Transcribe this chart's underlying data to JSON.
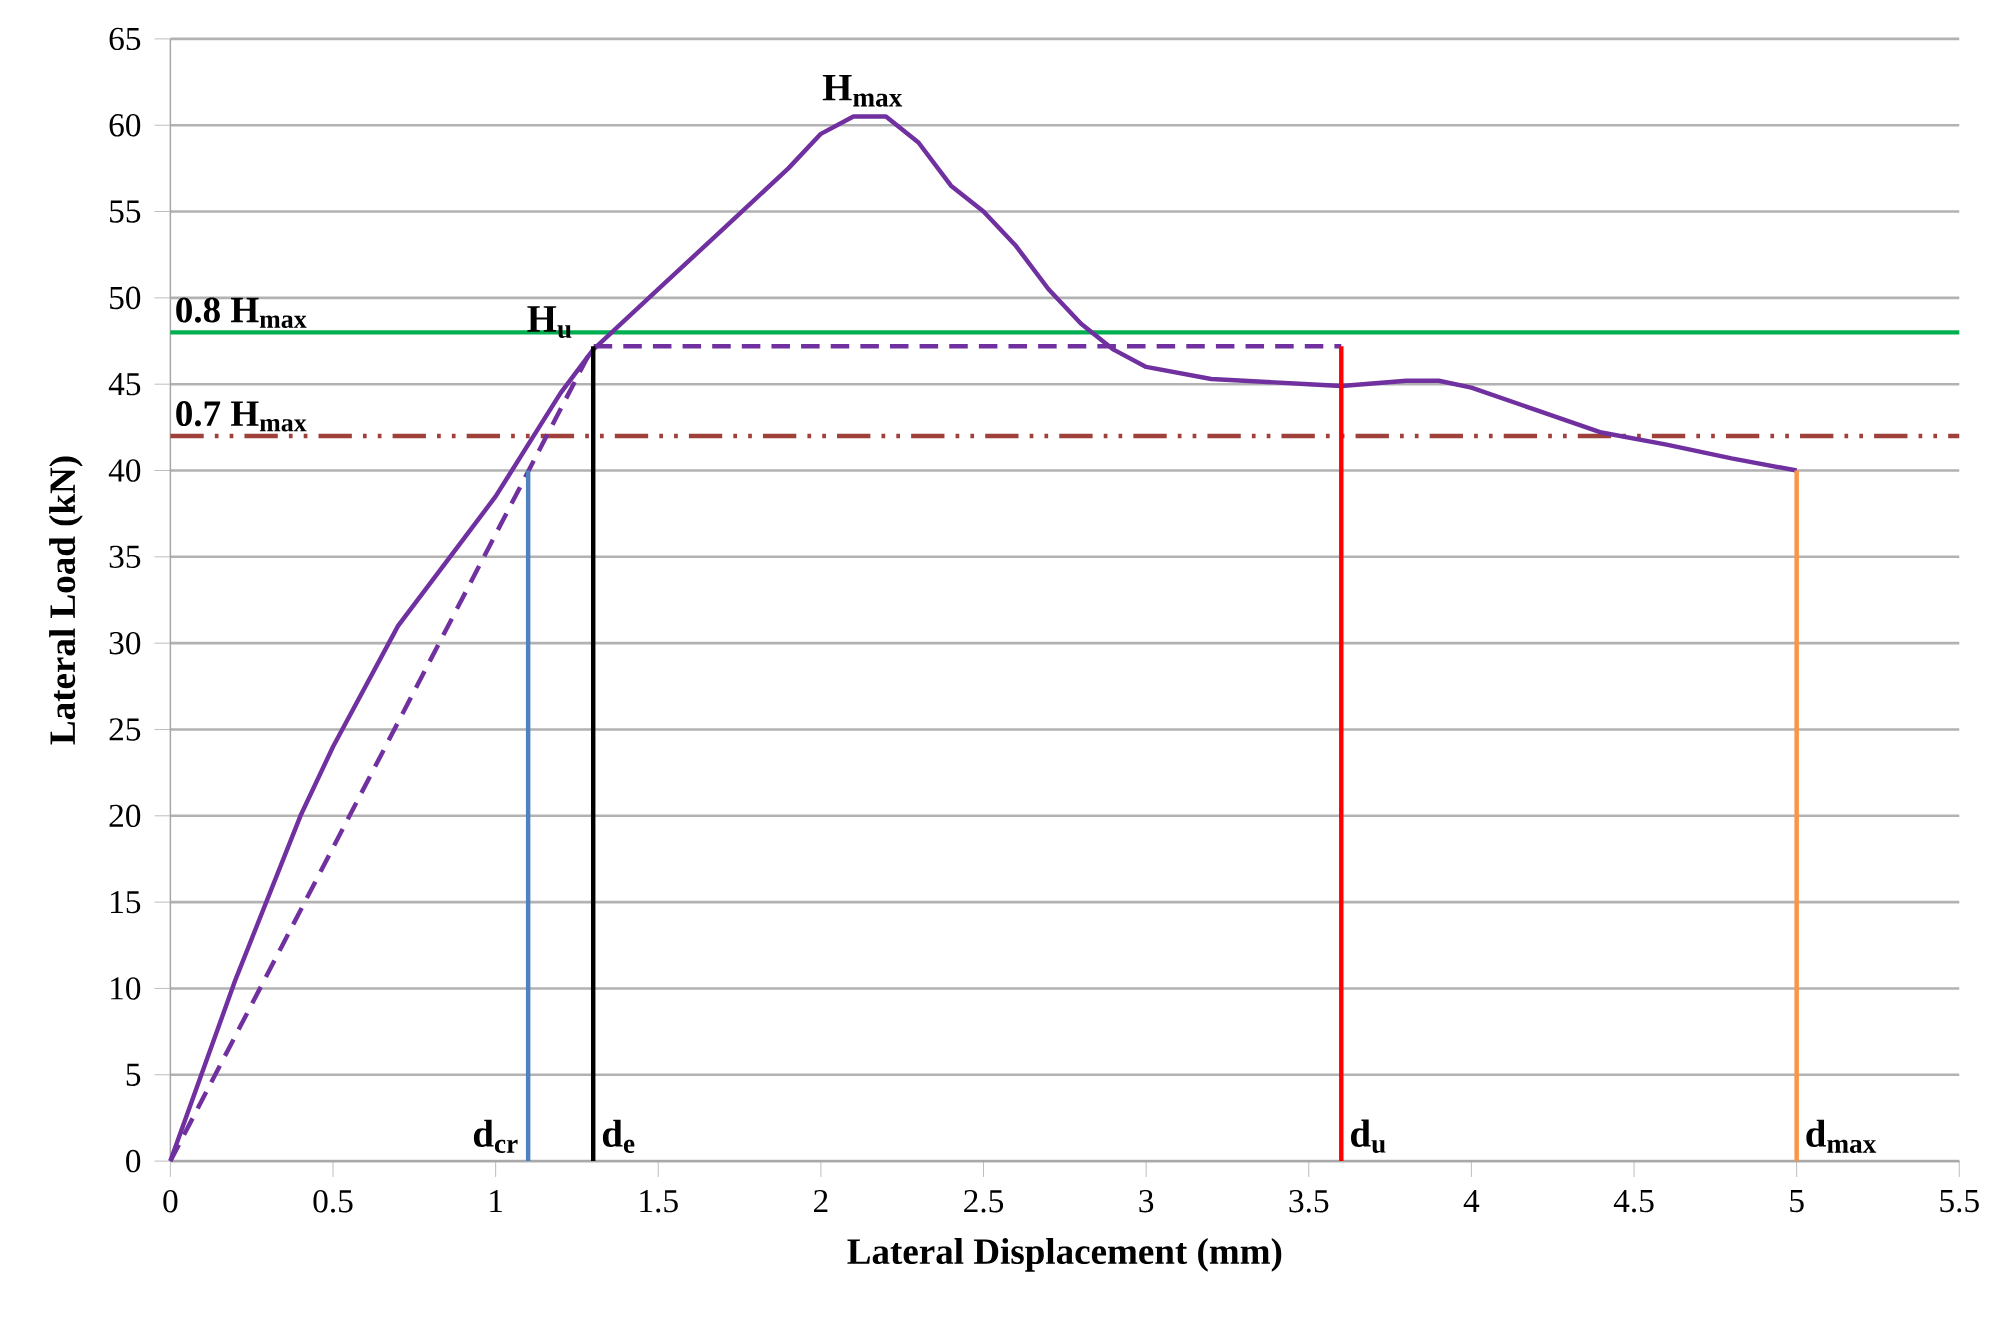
{
  "chart_data": {
    "type": "line",
    "xlabel": "Lateral Displacement (mm)",
    "ylabel": "Lateral Load (kN)",
    "xlim": [
      0,
      5.5
    ],
    "ylim": [
      0,
      65
    ],
    "xticks": [
      0,
      0.5,
      1,
      1.5,
      2,
      2.5,
      3,
      3.5,
      4,
      4.5,
      5,
      5.5
    ],
    "yticks": [
      0,
      5,
      10,
      15,
      20,
      25,
      30,
      35,
      40,
      45,
      50,
      55,
      60,
      65
    ],
    "grid": "y",
    "series": [
      {
        "color": "#7030a0",
        "line_style": "solid",
        "x": [
          0,
          0.2,
          0.4,
          0.5,
          0.7,
          0.9,
          1.0,
          1.1,
          1.2,
          1.3,
          1.5,
          1.7,
          1.9,
          2.0,
          2.1,
          2.2,
          2.3,
          2.4,
          2.5,
          2.6,
          2.7,
          2.8,
          2.9,
          3.0,
          3.2,
          3.5,
          3.6,
          3.8,
          3.9,
          4.0,
          4.2,
          4.4,
          4.6,
          4.8,
          5.0
        ],
        "values": [
          0,
          10.5,
          20,
          24,
          31,
          36,
          38.5,
          41.5,
          44.5,
          47,
          50.5,
          54,
          57.5,
          59.5,
          60.5,
          60.5,
          59,
          56.5,
          55,
          53,
          50.5,
          48.5,
          47,
          46,
          45.3,
          45,
          44.9,
          45.2,
          45.2,
          44.8,
          43.5,
          42.2,
          41.5,
          40.7,
          40
        ]
      },
      {
        "color": "#7030a0",
        "line_style": "dashed",
        "x": [
          0,
          1.3,
          3.6
        ],
        "values": [
          0,
          47.2,
          47.2
        ]
      },
      {
        "color": "#4f81bd",
        "line_style": "solid",
        "x": [
          1.1,
          1.1
        ],
        "values": [
          0,
          40
        ]
      },
      {
        "color": "#000000",
        "line_style": "solid",
        "x": [
          1.3,
          1.3
        ],
        "values": [
          0,
          47.2
        ]
      },
      {
        "color": "#ff0000",
        "line_style": "solid",
        "x": [
          3.6,
          3.6
        ],
        "values": [
          0,
          47.2
        ]
      },
      {
        "color": "#f79646",
        "line_style": "solid",
        "x": [
          5,
          5
        ],
        "values": [
          0,
          40
        ]
      }
    ],
    "ref_lines": [
      {
        "axis": "y",
        "value": 48,
        "label": "0.8 H$_{max}$",
        "color": "#00b050",
        "line_style": "solid"
      },
      {
        "axis": "y",
        "value": 42,
        "label": "0.7 H$_{max}$",
        "color": "#a0403a",
        "line_style": "dashed"
      }
    ],
    "annotations": [
      {
        "text": "H$_{max}$",
        "x": 2.13,
        "y": 60.6
      },
      {
        "text": "H$_{u}$",
        "x": 1.3,
        "y": 47.2
      },
      {
        "text": "d$_{cr}$",
        "x": 1.1,
        "y": 0
      },
      {
        "text": "d$_{e}$",
        "x": 1.3,
        "y": 0
      },
      {
        "text": "d$_{u}$",
        "x": 3.6,
        "y": 0
      },
      {
        "text": "d$_{max}$",
        "x": 5,
        "y": 0
      }
    ]
  }
}
